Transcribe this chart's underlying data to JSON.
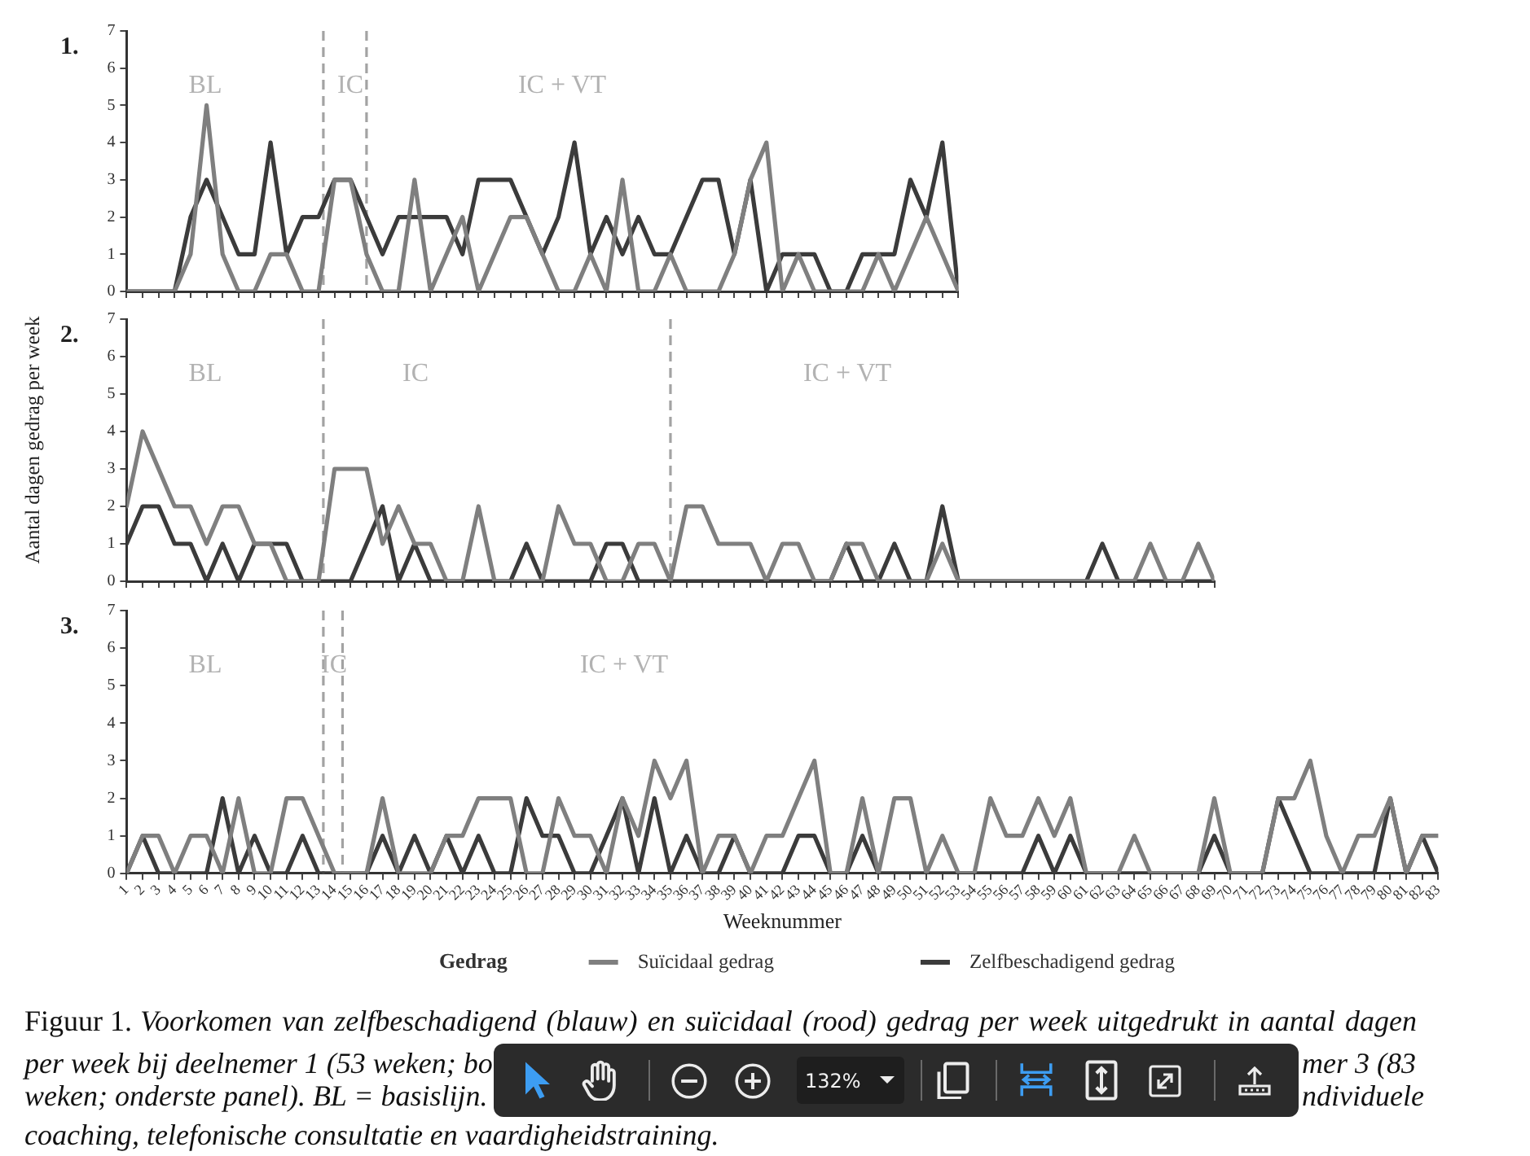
{
  "chart_data": [
    {
      "type": "line",
      "title": "1.",
      "x": [
        1,
        2,
        3,
        4,
        5,
        6,
        7,
        8,
        9,
        10,
        11,
        12,
        13,
        14,
        15,
        16,
        17,
        18,
        19,
        20,
        21,
        22,
        23,
        24,
        25,
        26,
        27,
        28,
        29,
        30,
        31,
        32,
        33,
        34,
        35,
        36,
        37,
        38,
        39,
        40,
        41,
        42,
        43,
        44,
        45,
        46,
        47,
        48,
        49,
        50,
        51,
        52,
        53
      ],
      "series": [
        {
          "color": "#7f7f7f",
          "values": [
            0,
            0,
            0,
            0,
            1,
            5,
            1,
            0,
            0,
            1,
            1,
            0,
            0,
            3,
            3,
            1,
            0,
            0,
            3,
            0,
            1,
            2,
            0,
            1,
            2,
            2,
            1,
            0,
            0,
            1,
            0,
            3,
            0,
            0,
            1,
            0,
            0,
            0,
            1,
            3,
            4,
            0,
            1,
            0,
            0,
            0,
            0,
            1,
            0,
            1,
            2,
            1,
            0
          ]
        },
        {
          "color": "#3b3b3b",
          "values": [
            0,
            0,
            0,
            0,
            2,
            3,
            2,
            1,
            1,
            4,
            1,
            2,
            2,
            3,
            3,
            2,
            1,
            2,
            2,
            2,
            2,
            1,
            3,
            3,
            3,
            2,
            1,
            2,
            4,
            1,
            2,
            1,
            2,
            1,
            1,
            2,
            3,
            3,
            1,
            3,
            0,
            1,
            1,
            1,
            0,
            0,
            1,
            1,
            1,
            3,
            2,
            4,
            0
          ]
        }
      ],
      "xlim": [
        1,
        53
      ],
      "xticks": [
        1,
        2,
        3,
        4,
        5,
        6,
        7,
        8,
        9,
        10,
        11,
        12,
        13,
        14,
        15,
        16,
        17,
        18,
        19,
        20,
        21,
        22,
        23,
        24,
        25,
        26,
        27,
        28,
        29,
        30,
        31,
        32,
        33,
        34,
        35,
        36,
        37,
        38,
        39,
        40,
        41,
        42,
        43,
        44,
        45,
        46,
        47,
        48,
        49,
        50,
        51,
        52,
        53
      ],
      "ylim": [
        0,
        7
      ],
      "yticks": [
        0,
        1,
        2,
        3,
        4,
        5,
        6,
        7
      ],
      "tick_labels": "y",
      "ref_lines": [
        {
          "axis": "x",
          "value": 13.3,
          "color": "#a3a3a3",
          "line_style": "dashed"
        },
        {
          "axis": "x",
          "value": 16,
          "color": "#a3a3a3",
          "line_style": "dashed"
        }
      ],
      "annotations": [
        "BL",
        "IC",
        "IC + VT"
      ]
    },
    {
      "type": "line",
      "title": "2.",
      "ylabel": "Aantal dagen gedrag per week",
      "x": [
        1,
        2,
        3,
        4,
        5,
        6,
        7,
        8,
        9,
        10,
        11,
        12,
        13,
        14,
        15,
        16,
        17,
        18,
        19,
        20,
        21,
        22,
        23,
        24,
        25,
        26,
        27,
        28,
        29,
        30,
        31,
        32,
        33,
        34,
        35,
        36,
        37,
        38,
        39,
        40,
        41,
        42,
        43,
        44,
        45,
        46,
        47,
        48,
        49,
        50,
        51,
        52,
        53,
        54,
        55,
        56,
        57,
        58,
        59,
        60,
        61,
        62,
        63,
        64,
        65,
        66,
        67,
        68,
        69
      ],
      "series": [
        {
          "color": "#7f7f7f",
          "values": [
            2,
            4,
            3,
            2,
            2,
            1,
            2,
            2,
            1,
            1,
            0,
            0,
            0,
            3,
            3,
            3,
            1,
            2,
            1,
            1,
            0,
            0,
            2,
            0,
            0,
            0,
            0,
            2,
            1,
            1,
            0,
            0,
            1,
            1,
            0,
            2,
            2,
            1,
            1,
            1,
            0,
            1,
            1,
            0,
            0,
            1,
            1,
            0,
            0,
            0,
            0,
            1,
            0,
            0,
            0,
            0,
            0,
            0,
            0,
            0,
            0,
            0,
            0,
            0,
            1,
            0,
            0,
            1,
            0
          ]
        },
        {
          "color": "#3b3b3b",
          "values": [
            1,
            2,
            2,
            1,
            1,
            0,
            1,
            0,
            1,
            1,
            1,
            0,
            0,
            0,
            0,
            1,
            2,
            0,
            1,
            0,
            0,
            0,
            0,
            0,
            0,
            1,
            0,
            0,
            0,
            0,
            1,
            1,
            0,
            0,
            0,
            0,
            0,
            0,
            0,
            0,
            0,
            0,
            0,
            0,
            0,
            1,
            0,
            0,
            1,
            0,
            0,
            2,
            0,
            0,
            0,
            0,
            0,
            0,
            0,
            0,
            0,
            1,
            0,
            0,
            0,
            0,
            0,
            0,
            0
          ]
        }
      ],
      "xlim": [
        1,
        69
      ],
      "xticks": [
        1,
        2,
        3,
        4,
        5,
        6,
        7,
        8,
        9,
        10,
        11,
        12,
        13,
        14,
        15,
        16,
        17,
        18,
        19,
        20,
        21,
        22,
        23,
        24,
        25,
        26,
        27,
        28,
        29,
        30,
        31,
        32,
        33,
        34,
        35,
        36,
        37,
        38,
        39,
        40,
        41,
        42,
        43,
        44,
        45,
        46,
        47,
        48,
        49,
        50,
        51,
        52,
        53,
        54,
        55,
        56,
        57,
        58,
        59,
        60,
        61,
        62,
        63,
        64,
        65,
        66,
        67,
        68,
        69
      ],
      "ylim": [
        0,
        7
      ],
      "yticks": [
        0,
        1,
        2,
        3,
        4,
        5,
        6,
        7
      ],
      "tick_labels": "y",
      "ref_lines": [
        {
          "axis": "x",
          "value": 13.3,
          "color": "#a3a3a3",
          "line_style": "dashed"
        },
        {
          "axis": "x",
          "value": 35,
          "color": "#a3a3a3",
          "line_style": "dashed"
        }
      ],
      "annotations": [
        "BL",
        "IC",
        "IC + VT"
      ]
    },
    {
      "type": "line",
      "title": "3.",
      "xlabel": "Weeknummer",
      "legend": "bottom",
      "legend_title": "Gedrag",
      "x": [
        1,
        2,
        3,
        4,
        5,
        6,
        7,
        8,
        9,
        10,
        11,
        12,
        13,
        14,
        15,
        16,
        17,
        18,
        19,
        20,
        21,
        22,
        23,
        24,
        25,
        26,
        27,
        28,
        29,
        30,
        31,
        32,
        33,
        34,
        35,
        36,
        37,
        38,
        39,
        40,
        41,
        42,
        43,
        44,
        45,
        46,
        47,
        48,
        49,
        50,
        51,
        52,
        53,
        54,
        55,
        56,
        57,
        58,
        59,
        60,
        61,
        62,
        63,
        64,
        65,
        66,
        67,
        68,
        69,
        70,
        71,
        72,
        73,
        74,
        75,
        76,
        77,
        78,
        79,
        80,
        81,
        82,
        83
      ],
      "series": [
        {
          "name": "Suïcidaal gedrag",
          "color": "#7f7f7f",
          "values": [
            0,
            1,
            1,
            0,
            1,
            1,
            0,
            2,
            0,
            0,
            2,
            2,
            1,
            0,
            0,
            0,
            2,
            0,
            0,
            0,
            1,
            1,
            2,
            2,
            2,
            0,
            0,
            2,
            1,
            1,
            0,
            2,
            1,
            3,
            2,
            3,
            0,
            1,
            1,
            0,
            1,
            1,
            2,
            3,
            0,
            0,
            2,
            0,
            2,
            2,
            0,
            1,
            0,
            0,
            2,
            1,
            1,
            2,
            1,
            2,
            0,
            0,
            0,
            1,
            0,
            0,
            0,
            0,
            2,
            0,
            0,
            0,
            2,
            2,
            3,
            1,
            0,
            1,
            1,
            2,
            0,
            1,
            1
          ]
        },
        {
          "name": "Zelfbeschadigend gedrag",
          "color": "#3b3b3b",
          "values": [
            0,
            1,
            0,
            0,
            0,
            0,
            2,
            0,
            1,
            0,
            0,
            1,
            0,
            0,
            0,
            0,
            1,
            0,
            1,
            0,
            1,
            0,
            1,
            0,
            0,
            2,
            1,
            1,
            0,
            0,
            1,
            2,
            0,
            2,
            0,
            1,
            0,
            0,
            1,
            0,
            0,
            0,
            1,
            1,
            0,
            0,
            1,
            0,
            0,
            0,
            0,
            0,
            0,
            0,
            0,
            0,
            0,
            1,
            0,
            1,
            0,
            0,
            0,
            0,
            0,
            0,
            0,
            0,
            1,
            0,
            0,
            0,
            2,
            1,
            0,
            0,
            0,
            0,
            0,
            2,
            0,
            1,
            0
          ]
        }
      ],
      "xlim": [
        1,
        83
      ],
      "xticks": [
        1,
        2,
        3,
        4,
        5,
        6,
        7,
        8,
        9,
        10,
        11,
        12,
        13,
        14,
        15,
        16,
        17,
        18,
        19,
        20,
        21,
        22,
        23,
        24,
        25,
        26,
        27,
        28,
        29,
        30,
        31,
        32,
        33,
        34,
        35,
        36,
        37,
        38,
        39,
        40,
        41,
        42,
        43,
        44,
        45,
        46,
        47,
        48,
        49,
        50,
        51,
        52,
        53,
        54,
        55,
        56,
        57,
        58,
        59,
        60,
        61,
        62,
        63,
        64,
        65,
        66,
        67,
        68,
        69,
        70,
        71,
        72,
        73,
        74,
        75,
        76,
        77,
        78,
        79,
        80,
        81,
        82,
        83
      ],
      "ylim": [
        0,
        7
      ],
      "yticks": [
        0,
        1,
        2,
        3,
        4,
        5,
        6,
        7
      ],
      "ref_lines": [
        {
          "axis": "x",
          "value": 13.3,
          "color": "#a3a3a3",
          "line_style": "dashed"
        },
        {
          "axis": "x",
          "value": 14.5,
          "color": "#a3a3a3",
          "line_style": "dashed"
        }
      ],
      "annotations": [
        "BL",
        "IC",
        "IC + VT",
        "Figuur 1.",
        "Voorkomen van zelfbeschadigend (blauw) en suïcidaal (rood) gedrag per week uitgedrukt in aantal dagen",
        "per week bij deelnemer 1 (53 weken; bo",
        "mer 3 (83",
        "weken; onderste panel). BL = basislijn.",
        "ndividuele",
        "coaching, telefonische consultatie en vaardigheidstraining.",
        "132%"
      ]
    }
  ]
}
